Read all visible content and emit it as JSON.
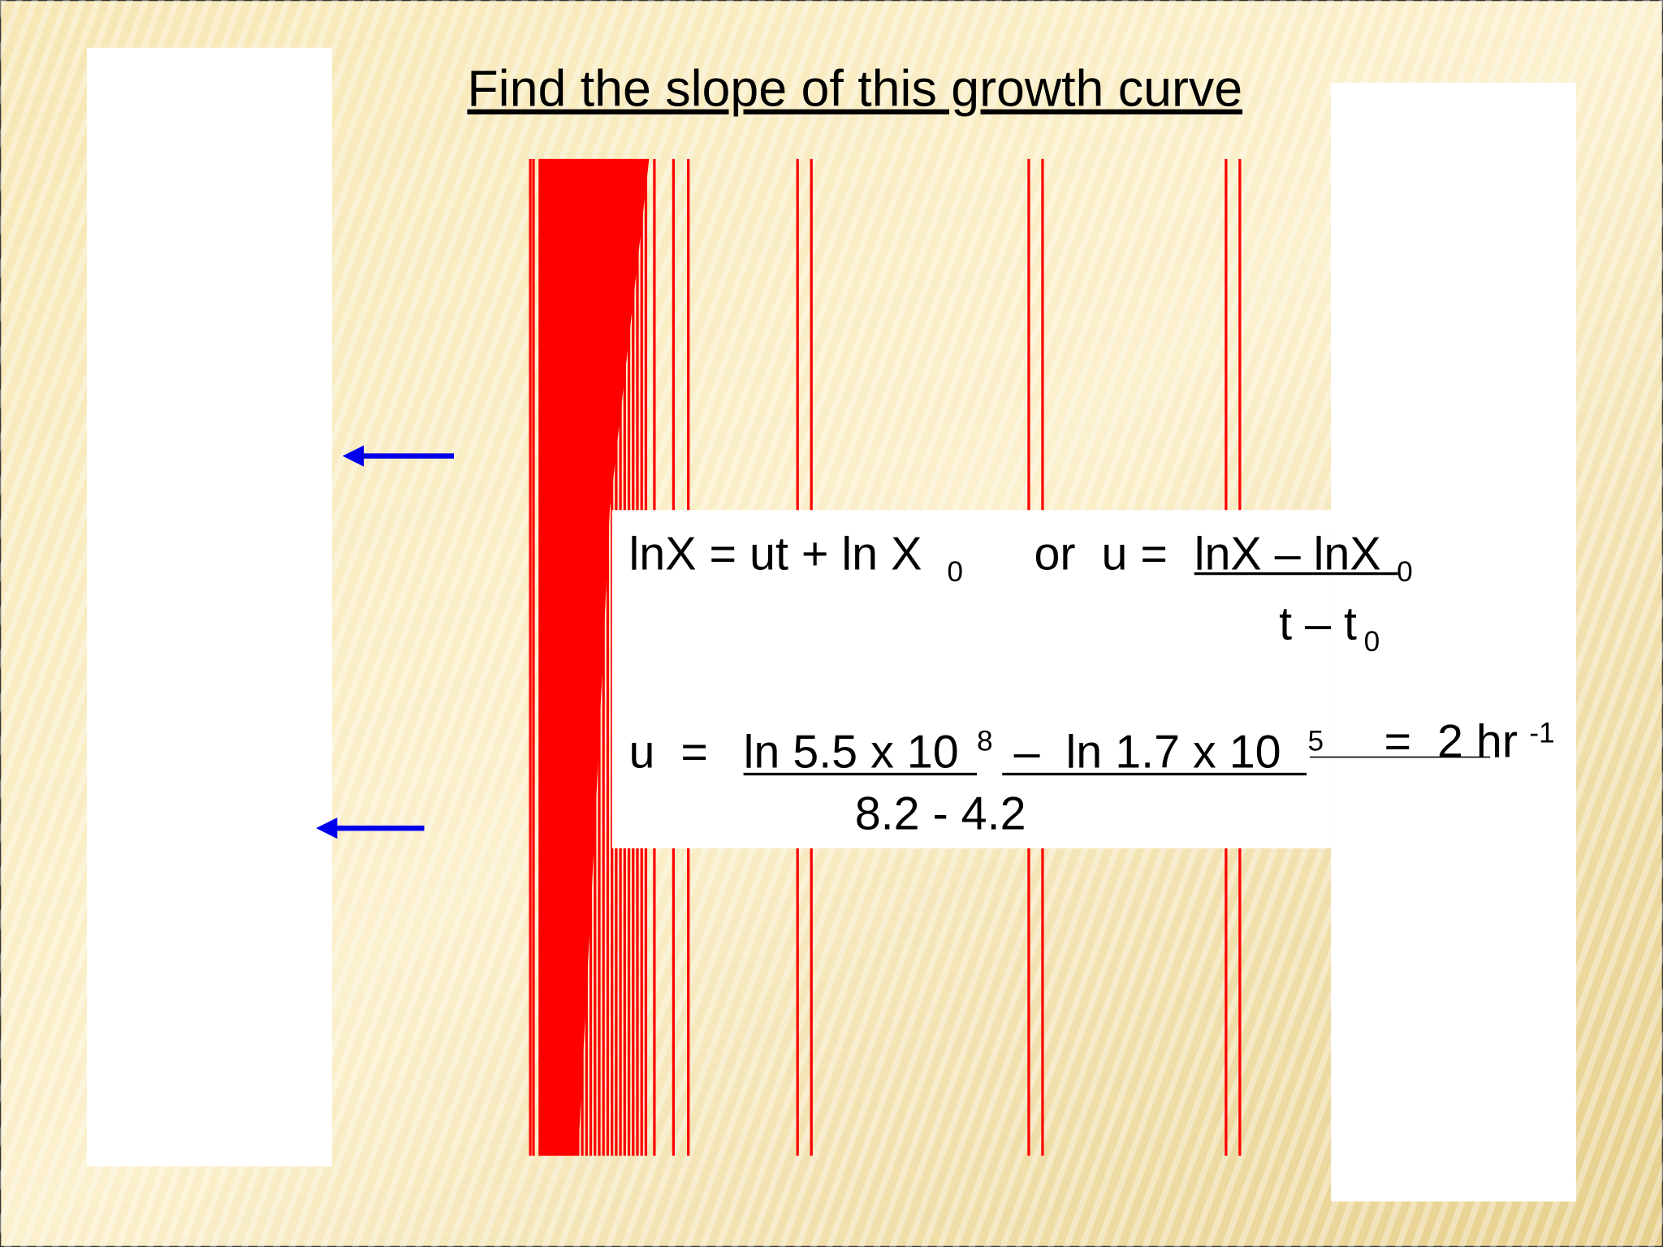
{
  "title": "Find the slope of this growth curve",
  "equation_1": {
    "left": "lnX = ut + ln X",
    "left_sub": "0",
    "connector": "or  u = ",
    "numerator": "lnX – lnX",
    "numerator_sub": "0",
    "denominator": "t – t",
    "denominator_sub": "0"
  },
  "equation_2": {
    "lhs": "u  =",
    "numerator_a": "ln 5.5 x 10",
    "numerator_a_exp": "8",
    "numerator_b": "–  ln 1.7 x 10",
    "numerator_b_exp": "5",
    "result": "=  2 hr",
    "result_exp": "-1",
    "denominator": "8.2 - 4.2"
  }
}
